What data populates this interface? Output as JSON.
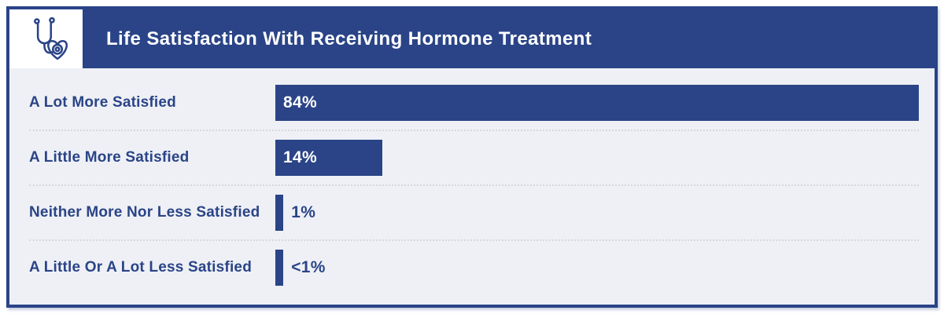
{
  "header": {
    "title": "Life Satisfaction With Receiving Hormone Treatment",
    "icon": "stethoscope-heart-icon"
  },
  "colors": {
    "primary_blue": "#2a4487",
    "body_background": "#eef0f5",
    "separator_dots": "#d5d7dd",
    "title_text": "#ffffff"
  },
  "chart_data": {
    "type": "bar",
    "orientation": "horizontal",
    "title": "Life Satisfaction With Receiving Hormone Treatment",
    "categories": [
      "A Lot More Satisfied",
      "A Little More Satisfied",
      "Neither More Nor Less Satisfied",
      "A Little Or A Lot Less Satisfied"
    ],
    "values": [
      84,
      14,
      1,
      0.9
    ],
    "value_labels": [
      "84%",
      "14%",
      "1%",
      "<1%"
    ],
    "value_label_position": [
      "inside",
      "inside",
      "outside",
      "outside"
    ],
    "scale_max": 84,
    "xlim": [
      0,
      100
    ],
    "grid": false,
    "legend": false
  }
}
